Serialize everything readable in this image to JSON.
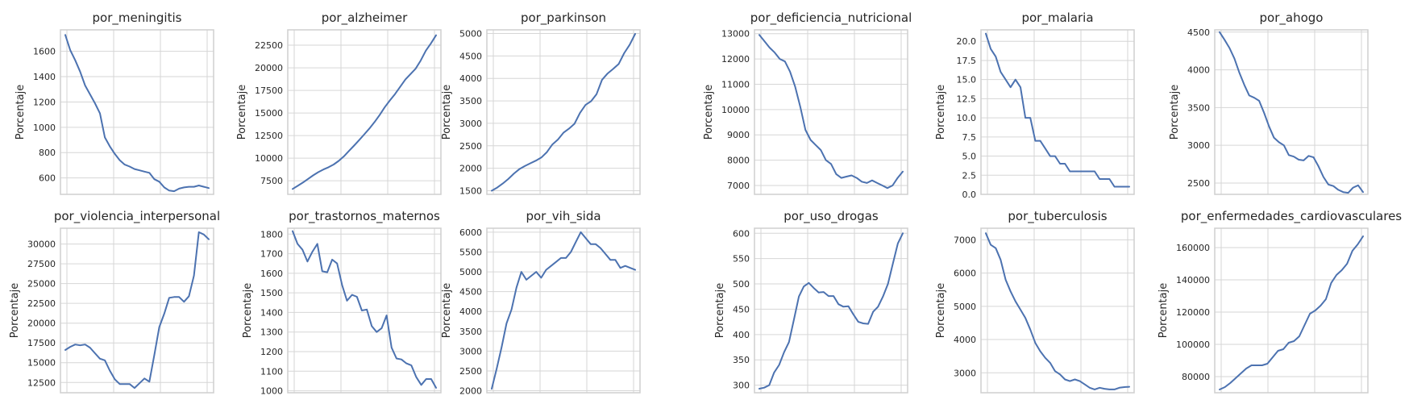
{
  "chart_data": [
    {
      "type": "line",
      "title": "por_meningitis",
      "ylabel": "Porcentaje",
      "xlabel": "",
      "ylim": [
        470,
        1770
      ],
      "yticks": [
        600,
        800,
        1000,
        1200,
        1400,
        1600
      ],
      "ytick_labels": [
        "600",
        "800",
        "1000",
        "1200",
        "1400",
        "1600"
      ],
      "x_gridlines": 4,
      "values": [
        1730,
        1610,
        1530,
        1440,
        1330,
        1260,
        1190,
        1110,
        920,
        850,
        790,
        740,
        705,
        690,
        670,
        660,
        650,
        640,
        590,
        570,
        525,
        500,
        495,
        515,
        525,
        530,
        530,
        540,
        530,
        520
      ]
    },
    {
      "type": "line",
      "title": "por_alzheimer",
      "ylabel": "Porcentaje",
      "xlabel": "",
      "ylim": [
        6000,
        24200
      ],
      "yticks": [
        7500,
        10000,
        12500,
        15000,
        17500,
        20000,
        22500
      ],
      "ytick_labels": [
        "7500",
        "10000",
        "12500",
        "15000",
        "17500",
        "20000",
        "22500"
      ],
      "x_gridlines": 4,
      "values": [
        6600,
        6950,
        7300,
        7700,
        8100,
        8450,
        8750,
        9000,
        9300,
        9700,
        10200,
        10800,
        11400,
        12000,
        12650,
        13300,
        14000,
        14800,
        15650,
        16400,
        17100,
        17900,
        18700,
        19300,
        19900,
        20800,
        21900,
        22700,
        23600
      ]
    },
    {
      "type": "line",
      "title": "por_parkinson",
      "ylabel": "Porcentaje",
      "xlabel": "",
      "ylim": [
        1420,
        5080
      ],
      "yticks": [
        1500,
        2000,
        2500,
        3000,
        3500,
        4000,
        4500,
        5000
      ],
      "ytick_labels": [
        "1500",
        "2000",
        "2500",
        "3000",
        "3500",
        "4000",
        "4500",
        "5000"
      ],
      "x_gridlines": 4,
      "values": [
        1500,
        1570,
        1660,
        1760,
        1880,
        1980,
        2050,
        2110,
        2170,
        2240,
        2360,
        2530,
        2640,
        2790,
        2880,
        2990,
        3230,
        3410,
        3490,
        3650,
        3970,
        4110,
        4210,
        4320,
        4560,
        4750,
        4990
      ]
    },
    {
      "type": "line",
      "title": "por_deficiencia_nutricional",
      "ylabel": "Porcentaje",
      "xlabel": "",
      "ylim": [
        6650,
        13150
      ],
      "yticks": [
        7000,
        8000,
        9000,
        10000,
        11000,
        12000,
        13000
      ],
      "ytick_labels": [
        "7000",
        "8000",
        "9000",
        "10000",
        "11000",
        "12000",
        "13000"
      ],
      "x_gridlines": 4,
      "values": [
        12950,
        12700,
        12450,
        12250,
        12000,
        11900,
        11500,
        10900,
        10100,
        9200,
        8800,
        8600,
        8400,
        8000,
        7850,
        7450,
        7300,
        7350,
        7400,
        7300,
        7150,
        7100,
        7200,
        7100,
        7000,
        6900,
        7000,
        7300,
        7550
      ]
    },
    {
      "type": "line",
      "title": "por_malaria",
      "ylabel": "Porcentaje",
      "xlabel": "",
      "ylim": [
        0,
        21.5
      ],
      "yticks": [
        0.0,
        2.5,
        5.0,
        7.5,
        10.0,
        12.5,
        15.0,
        17.5,
        20.0
      ],
      "ytick_labels": [
        "0.0",
        "2.5",
        "5.0",
        "7.5",
        "10.0",
        "12.5",
        "15.0",
        "17.5",
        "20.0"
      ],
      "x_gridlines": 4,
      "values": [
        21,
        19,
        18,
        16,
        15,
        14,
        15,
        14,
        10,
        10,
        7,
        7,
        6,
        5,
        5,
        4,
        4,
        3,
        3,
        3,
        3,
        3,
        3,
        2,
        2,
        2,
        1,
        1,
        1,
        1
      ]
    },
    {
      "type": "line",
      "title": "por_ahogo",
      "ylabel": "Porcentaje",
      "xlabel": "",
      "ylim": [
        2350,
        4530
      ],
      "yticks": [
        2500,
        3000,
        3500,
        4000,
        4500
      ],
      "ytick_labels": [
        "2500",
        "3000",
        "3500",
        "4000",
        "4500"
      ],
      "x_gridlines": 4,
      "values": [
        4500,
        4400,
        4290,
        4150,
        3960,
        3800,
        3660,
        3630,
        3590,
        3430,
        3250,
        3100,
        3040,
        3000,
        2870,
        2850,
        2810,
        2800,
        2860,
        2840,
        2720,
        2580,
        2480,
        2460,
        2410,
        2380,
        2370,
        2440,
        2470,
        2380
      ]
    },
    {
      "type": "line",
      "title": "por_violencia_interpersonal",
      "ylabel": "Porcentaje",
      "xlabel": "",
      "ylim": [
        11200,
        32000
      ],
      "yticks": [
        12500,
        15000,
        17500,
        20000,
        22500,
        25000,
        27500,
        30000
      ],
      "ytick_labels": [
        "12500",
        "15000",
        "17500",
        "20000",
        "22500",
        "25000",
        "27500",
        "30000"
      ],
      "x_gridlines": 4,
      "values": [
        16600,
        17000,
        17300,
        17200,
        17300,
        16900,
        16200,
        15500,
        15300,
        14000,
        12900,
        12300,
        12300,
        12300,
        11800,
        12400,
        13000,
        12600,
        16000,
        19500,
        21200,
        23200,
        23300,
        23300,
        22700,
        23400,
        26000,
        31500,
        31200,
        30600
      ]
    },
    {
      "type": "line",
      "title": "por_trastornos_maternos",
      "ylabel": "Porcentaje",
      "xlabel": "",
      "ylim": [
        990,
        1830
      ],
      "yticks": [
        1000,
        1100,
        1200,
        1300,
        1400,
        1500,
        1600,
        1700,
        1800
      ],
      "ytick_labels": [
        "1000",
        "1100",
        "1200",
        "1300",
        "1400",
        "1500",
        "1600",
        "1700",
        "1800"
      ],
      "x_gridlines": 4,
      "values": [
        1815,
        1750,
        1720,
        1660,
        1710,
        1750,
        1610,
        1605,
        1670,
        1650,
        1540,
        1460,
        1490,
        1480,
        1410,
        1415,
        1330,
        1300,
        1320,
        1385,
        1220,
        1165,
        1160,
        1140,
        1130,
        1070,
        1030,
        1060,
        1060,
        1015
      ]
    },
    {
      "type": "line",
      "title": "por_vih_sida",
      "ylabel": "Porcentaje",
      "xlabel": "",
      "ylim": [
        1950,
        6100
      ],
      "yticks": [
        2000,
        2500,
        3000,
        3500,
        4000,
        4500,
        5000,
        5500,
        6000
      ],
      "ytick_labels": [
        "2000",
        "2500",
        "3000",
        "3500",
        "4000",
        "4500",
        "5000",
        "5500",
        "6000"
      ],
      "x_gridlines": 4,
      "values": [
        2050,
        2550,
        3100,
        3700,
        4050,
        4600,
        5000,
        4800,
        4900,
        5000,
        4850,
        5050,
        5150,
        5250,
        5350,
        5350,
        5500,
        5750,
        6000,
        5850,
        5700,
        5700,
        5600,
        5450,
        5300,
        5300,
        5100,
        5150,
        5100,
        5050
      ]
    },
    {
      "type": "line",
      "title": "por_uso_drogas",
      "ylabel": "Porcentaje",
      "xlabel": "",
      "ylim": [
        285,
        610
      ],
      "yticks": [
        300,
        350,
        400,
        450,
        500,
        550,
        600
      ],
      "ytick_labels": [
        "300",
        "350",
        "400",
        "450",
        "500",
        "550",
        "600"
      ],
      "x_gridlines": 4,
      "values": [
        293,
        295,
        300,
        325,
        340,
        365,
        385,
        430,
        475,
        495,
        502,
        492,
        483,
        484,
        476,
        476,
        460,
        455,
        456,
        440,
        425,
        422,
        421,
        445,
        455,
        475,
        500,
        540,
        580,
        600
      ]
    },
    {
      "type": "line",
      "title": "por_tuberculosis",
      "ylabel": "Porcentaje",
      "xlabel": "",
      "ylim": [
        2400,
        7350
      ],
      "yticks": [
        3000,
        4000,
        5000,
        6000,
        7000
      ],
      "ytick_labels": [
        "3000",
        "4000",
        "5000",
        "6000",
        "7000"
      ],
      "x_gridlines": 4,
      "values": [
        7200,
        6850,
        6750,
        6400,
        5800,
        5450,
        5150,
        4900,
        4650,
        4300,
        3900,
        3650,
        3450,
        3300,
        3050,
        2950,
        2800,
        2750,
        2800,
        2750,
        2650,
        2550,
        2500,
        2550,
        2520,
        2500,
        2500,
        2550,
        2570,
        2580
      ]
    },
    {
      "type": "line",
      "title": "por_enfermedades_cardiovasculares",
      "ylabel": "Porcentaje",
      "xlabel": "",
      "ylim": [
        70000,
        172000
      ],
      "yticks": [
        80000,
        100000,
        120000,
        140000,
        160000
      ],
      "ytick_labels": [
        "80000",
        "100000",
        "120000",
        "140000",
        "160000"
      ],
      "x_gridlines": 4,
      "values": [
        72000,
        73500,
        76000,
        79000,
        82000,
        85000,
        87000,
        87000,
        87000,
        88000,
        92000,
        96000,
        97000,
        101000,
        102000,
        105000,
        112000,
        119000,
        121000,
        124000,
        128000,
        138000,
        143000,
        146000,
        150000,
        158000,
        162000,
        167000
      ]
    }
  ]
}
